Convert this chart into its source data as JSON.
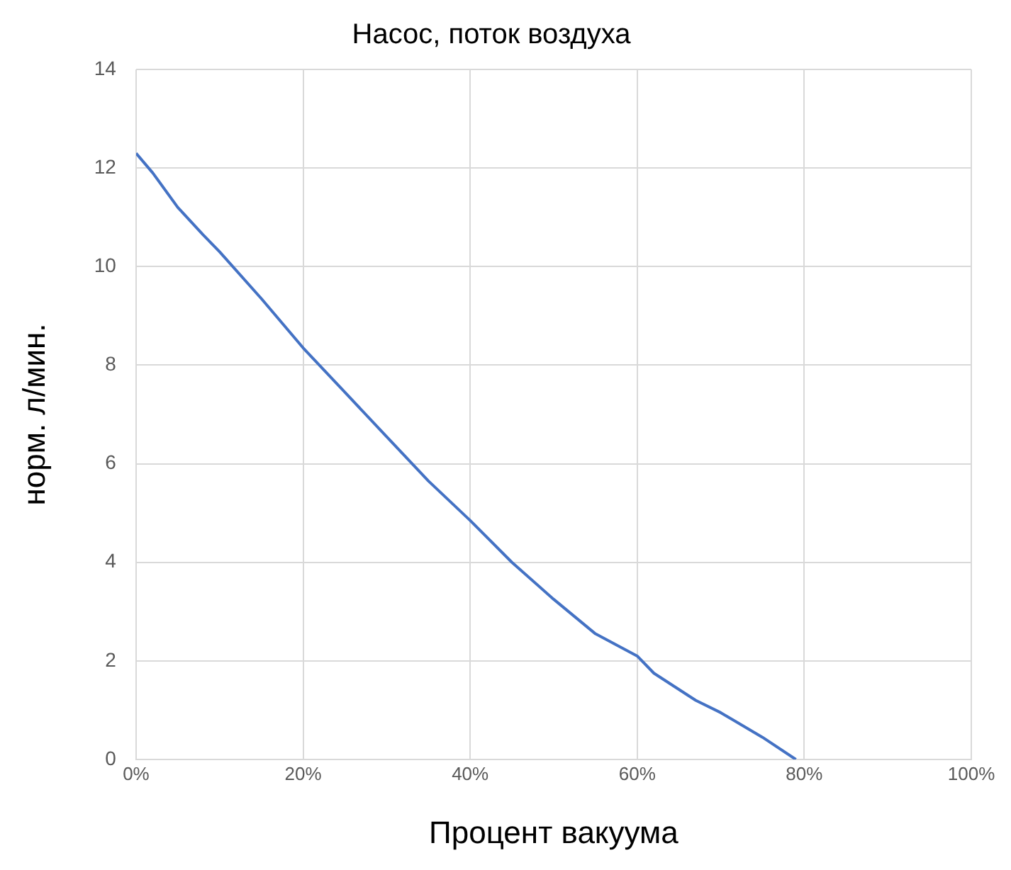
{
  "chart_data": {
    "type": "line",
    "title": "Насос, поток воздуха",
    "xlabel": "Процент вакуума",
    "ylabel": "норм. л/мин.",
    "x": [
      0,
      2,
      5,
      8,
      10,
      15,
      20,
      25,
      30,
      35,
      40,
      45,
      50,
      55,
      60,
      62,
      67,
      70,
      75,
      79
    ],
    "series": [
      {
        "color": "#4472c4",
        "values": [
          12.3,
          11.9,
          11.2,
          10.65,
          10.3,
          9.35,
          8.35,
          7.45,
          6.55,
          5.65,
          4.85,
          4.0,
          3.25,
          2.55,
          2.1,
          1.75,
          1.2,
          0.95,
          0.45,
          0.0
        ]
      }
    ],
    "xlim": [
      0,
      100
    ],
    "xticks": [
      {
        "value": 0,
        "label": "0%"
      },
      {
        "value": 20,
        "label": "20%"
      },
      {
        "value": 40,
        "label": "40%"
      },
      {
        "value": 60,
        "label": "60%"
      },
      {
        "value": 80,
        "label": "80%"
      },
      {
        "value": 100,
        "label": "100%"
      }
    ],
    "ylim": [
      0,
      14
    ],
    "yticks": [
      0,
      2,
      4,
      6,
      8,
      10,
      12,
      14
    ],
    "grid": true,
    "legend": false,
    "marker": "none",
    "line_style": "solid"
  }
}
